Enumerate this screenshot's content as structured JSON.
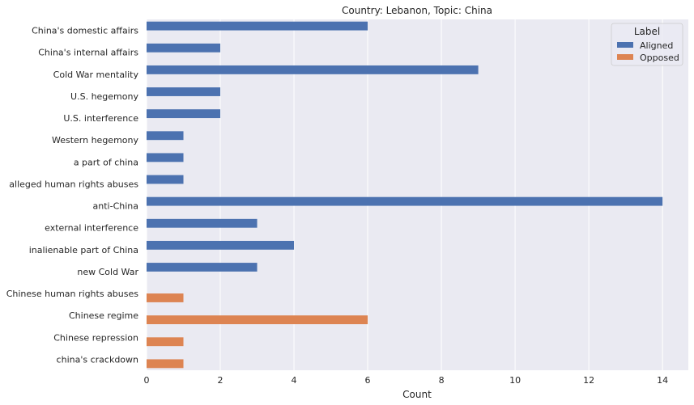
{
  "chart_data": {
    "type": "bar",
    "orientation": "horizontal",
    "title": "Country: Lebanon, Topic: China",
    "xlabel": "Count",
    "ylabel": "",
    "xlim": [
      0,
      14.7
    ],
    "xticks": [
      0,
      2,
      4,
      6,
      8,
      10,
      12,
      14
    ],
    "grid": true,
    "legend": {
      "title": "Label",
      "placement": "top-right",
      "entries": [
        "Aligned",
        "Opposed"
      ]
    },
    "categories": [
      "China's domestic affairs",
      "China's internal affairs",
      "Cold War mentality",
      "U.S. hegemony",
      "U.S. interference",
      "Western hegemony",
      "a part of china",
      "alleged human rights abuses",
      "anti-China",
      "external interference",
      "inalienable part of China",
      "new Cold War",
      "Chinese human rights abuses",
      "Chinese regime",
      "Chinese repression",
      "china's crackdown"
    ],
    "series": [
      {
        "name": "Aligned",
        "color": "#4c72b0",
        "values": [
          6,
          2,
          9,
          2,
          2,
          1,
          1,
          1,
          14,
          3,
          4,
          3,
          0,
          0,
          0,
          0
        ]
      },
      {
        "name": "Opposed",
        "color": "#dd8452",
        "values": [
          0,
          0,
          0,
          0,
          0,
          0,
          0,
          0,
          0,
          0,
          0,
          0,
          1,
          6,
          1,
          1
        ]
      }
    ]
  },
  "colors": {
    "plot_background": "#eaeaf2",
    "grid": "#ffffff",
    "text": "#262626"
  }
}
